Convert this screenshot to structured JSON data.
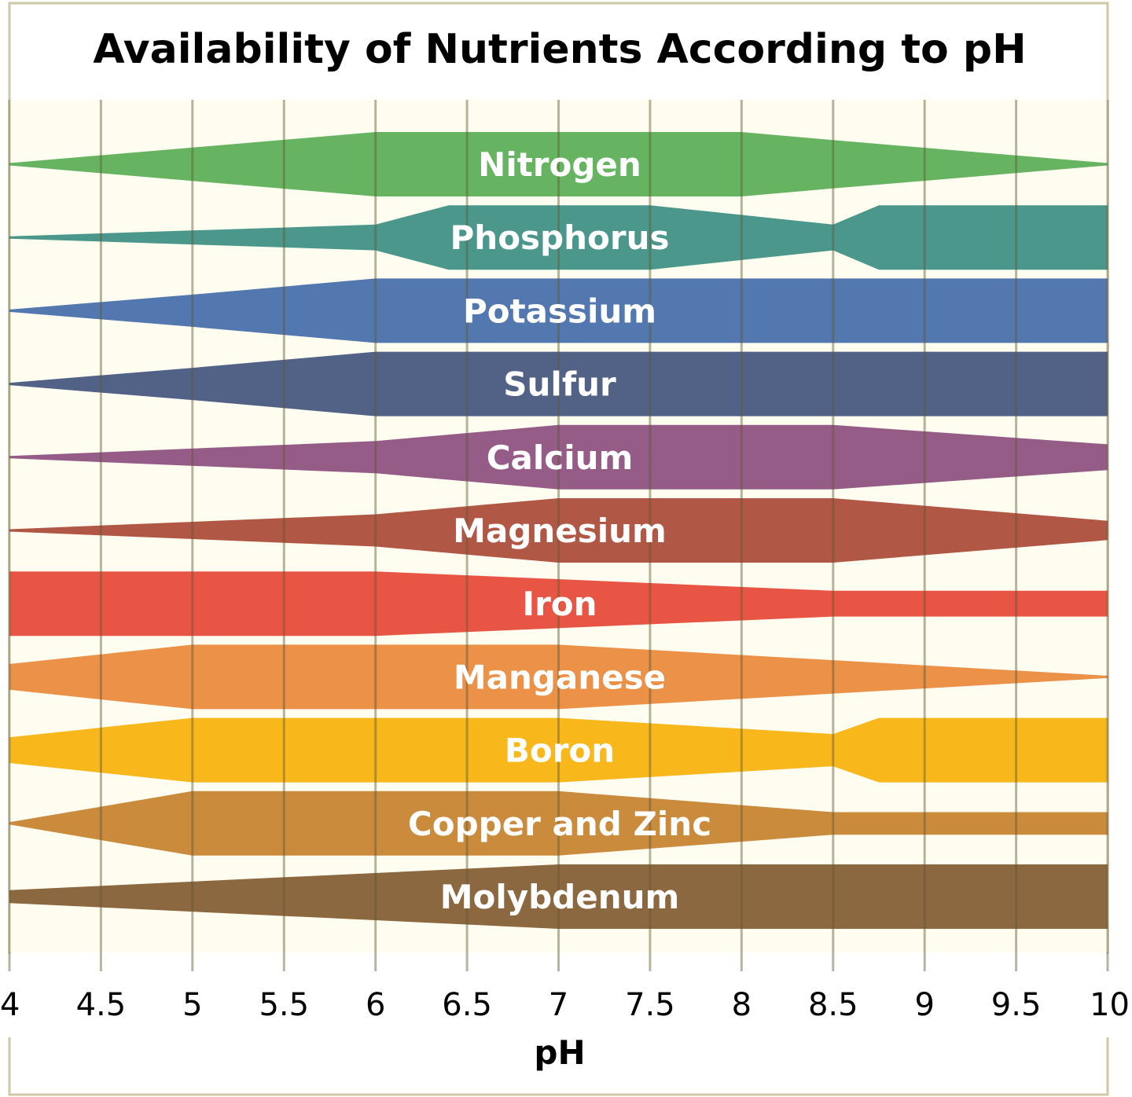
{
  "chart_data": {
    "type": "area",
    "title": "Availability of Nutrients According to pH",
    "xlabel": "pH",
    "ylabel": "",
    "xlim": [
      4,
      10
    ],
    "x_ticks": [
      "4",
      "4.5",
      "5",
      "5.5",
      "6",
      "6.5",
      "7",
      "7.5",
      "8",
      "8.5",
      "9",
      "9.5",
      "10"
    ],
    "grid": true,
    "legend": "none",
    "availability_scale_max": 1,
    "series": [
      {
        "name": "Nitrogen",
        "color": "#66b462",
        "points": [
          [
            4,
            0
          ],
          [
            6,
            1
          ],
          [
            8,
            1
          ],
          [
            8.5,
            0.75
          ],
          [
            10,
            0
          ]
        ]
      },
      {
        "name": "Phosphorus",
        "color": "#4c978c",
        "points": [
          [
            4,
            0
          ],
          [
            6,
            0.4
          ],
          [
            6.4,
            1
          ],
          [
            7.5,
            1
          ],
          [
            8.5,
            0.4
          ],
          [
            8.75,
            1
          ],
          [
            10,
            1
          ]
        ]
      },
      {
        "name": "Potassium",
        "color": "#5378b0",
        "points": [
          [
            4,
            0
          ],
          [
            5,
            0.5
          ],
          [
            6,
            1
          ],
          [
            10,
            1
          ]
        ]
      },
      {
        "name": "Sulfur",
        "color": "#526287",
        "points": [
          [
            4,
            0
          ],
          [
            5,
            0.5
          ],
          [
            6,
            1
          ],
          [
            10,
            1
          ]
        ]
      },
      {
        "name": "Calcium",
        "color": "#965c88",
        "points": [
          [
            4,
            0
          ],
          [
            6,
            0.5
          ],
          [
            7,
            1
          ],
          [
            8.5,
            1
          ],
          [
            10,
            0.4
          ]
        ]
      },
      {
        "name": "Magnesium",
        "color": "#b15745",
        "points": [
          [
            4,
            0
          ],
          [
            6,
            0.5
          ],
          [
            7,
            1
          ],
          [
            8.5,
            1
          ],
          [
            10,
            0.3
          ]
        ]
      },
      {
        "name": "Iron",
        "color": "#e95545",
        "points": [
          [
            4,
            1
          ],
          [
            6,
            1
          ],
          [
            8.5,
            0.4
          ],
          [
            10,
            0.4
          ]
        ]
      },
      {
        "name": "Manganese",
        "color": "#eb9148",
        "points": [
          [
            4,
            0.4
          ],
          [
            5,
            1
          ],
          [
            7,
            1
          ],
          [
            10,
            0
          ]
        ]
      },
      {
        "name": "Boron",
        "color": "#f8b81c",
        "points": [
          [
            4,
            0.4
          ],
          [
            5,
            1
          ],
          [
            7,
            1
          ],
          [
            8.5,
            0.5
          ],
          [
            8.75,
            1
          ],
          [
            10,
            1
          ]
        ]
      },
      {
        "name": "Copper and Zinc",
        "color": "#ca8b3d",
        "points": [
          [
            4,
            0
          ],
          [
            5,
            1
          ],
          [
            7,
            1
          ],
          [
            8.5,
            0.35
          ],
          [
            10,
            0.35
          ]
        ]
      },
      {
        "name": "Molybdenum",
        "color": "#8c6840",
        "points": [
          [
            4,
            0.2
          ],
          [
            7,
            1
          ],
          [
            10,
            1
          ]
        ]
      }
    ]
  }
}
